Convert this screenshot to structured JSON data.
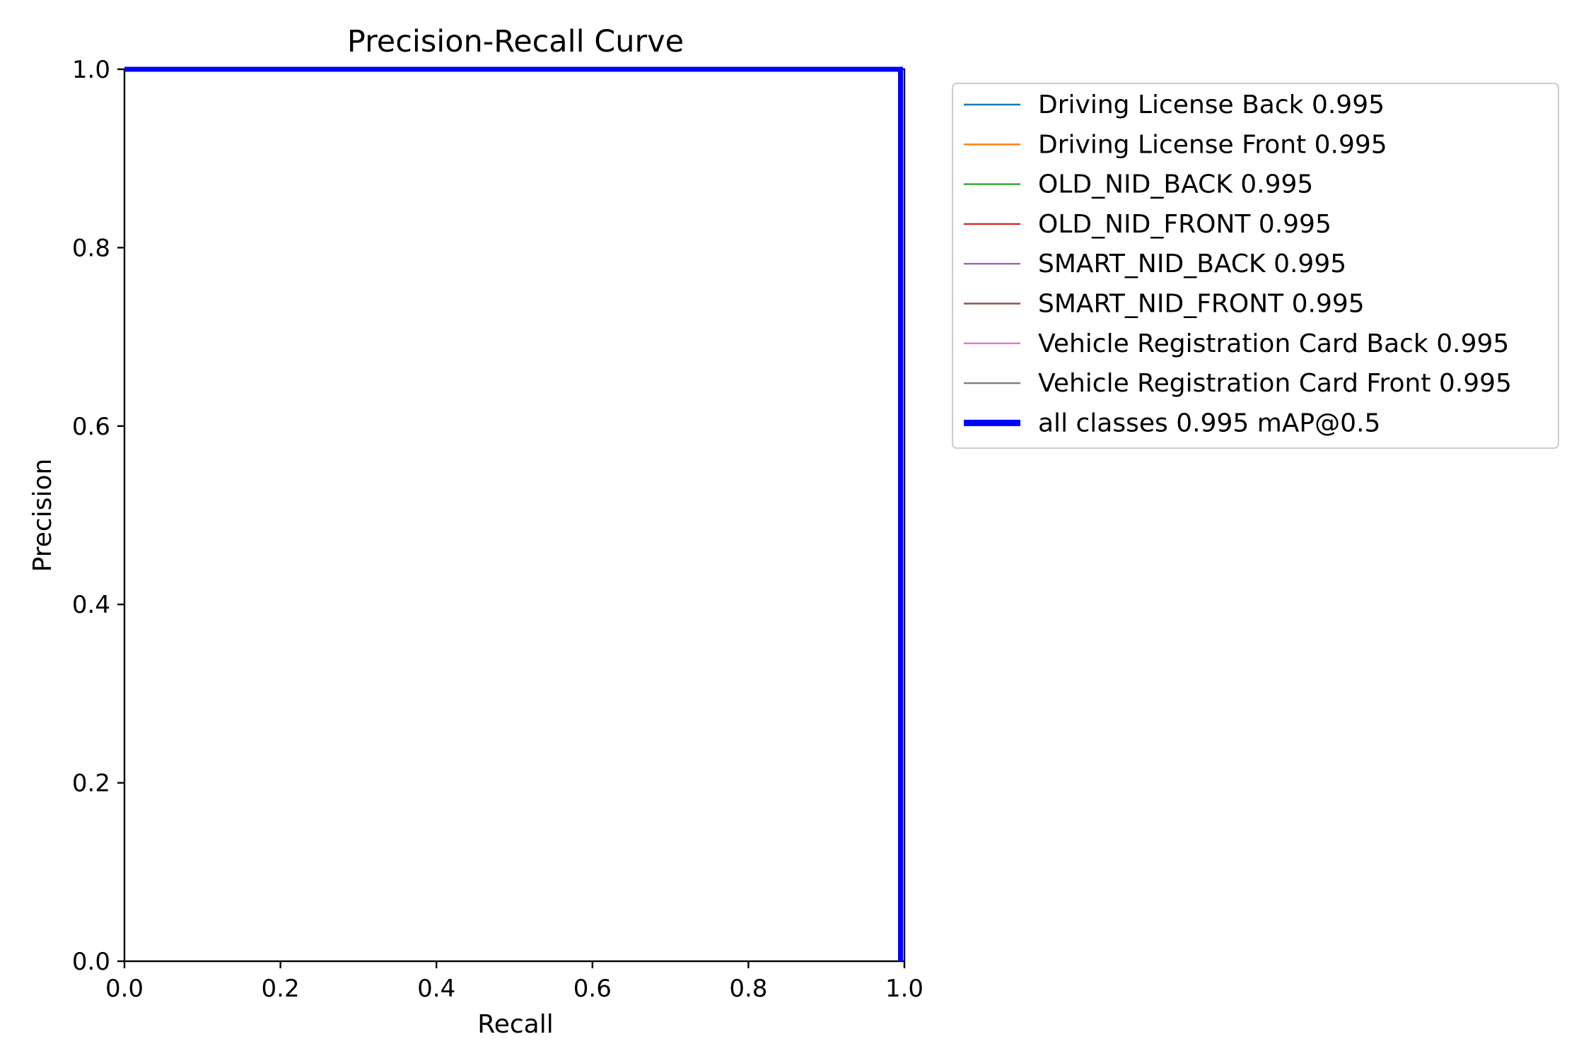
{
  "chart_data": {
    "type": "line",
    "title": "Precision-Recall Curve",
    "xlabel": "Recall",
    "ylabel": "Precision",
    "xlim": [
      0.0,
      1.0
    ],
    "ylim": [
      0.0,
      1.0
    ],
    "xticks": [
      "0.0",
      "0.2",
      "0.4",
      "0.6",
      "0.8",
      "1.0"
    ],
    "yticks": [
      "0.0",
      "0.2",
      "0.4",
      "0.6",
      "0.8",
      "1.0"
    ],
    "grid": false,
    "legend_position": "outside upper right",
    "series": [
      {
        "name": "Driving License Back 0.995",
        "color": "#1f77b4",
        "x": [
          0.0,
          0.995,
          0.995
        ],
        "y": [
          1.0,
          1.0,
          0.0
        ]
      },
      {
        "name": "Driving License Front 0.995",
        "color": "#ff7f0e",
        "x": [
          0.0,
          0.995,
          0.995
        ],
        "y": [
          1.0,
          1.0,
          0.0
        ]
      },
      {
        "name": "OLD_NID_BACK 0.995",
        "color": "#2ca02c",
        "x": [
          0.0,
          0.995,
          0.995
        ],
        "y": [
          1.0,
          1.0,
          0.0
        ]
      },
      {
        "name": "OLD_NID_FRONT 0.995",
        "color": "#d62728",
        "x": [
          0.0,
          0.995,
          0.995
        ],
        "y": [
          1.0,
          1.0,
          0.0
        ]
      },
      {
        "name": "SMART_NID_BACK 0.995",
        "color": "#9467bd",
        "x": [
          0.0,
          0.995,
          0.995
        ],
        "y": [
          1.0,
          1.0,
          0.0
        ]
      },
      {
        "name": "SMART_NID_FRONT 0.995",
        "color": "#8c564b",
        "x": [
          0.0,
          0.995,
          0.995
        ],
        "y": [
          1.0,
          1.0,
          0.0
        ]
      },
      {
        "name": "Vehicle Registration Card Back 0.995",
        "color": "#e377c2",
        "x": [
          0.0,
          0.995,
          0.995
        ],
        "y": [
          1.0,
          1.0,
          0.0
        ]
      },
      {
        "name": "Vehicle Registration Card Front 0.995",
        "color": "#7f7f7f",
        "x": [
          0.0,
          0.995,
          0.995
        ],
        "y": [
          1.0,
          1.0,
          0.0
        ]
      },
      {
        "name": "all classes 0.995 mAP@0.5",
        "color": "#0000ff",
        "emphasis": "thick",
        "x": [
          0.0,
          0.995,
          0.995
        ],
        "y": [
          1.0,
          1.0,
          0.0
        ]
      }
    ]
  }
}
